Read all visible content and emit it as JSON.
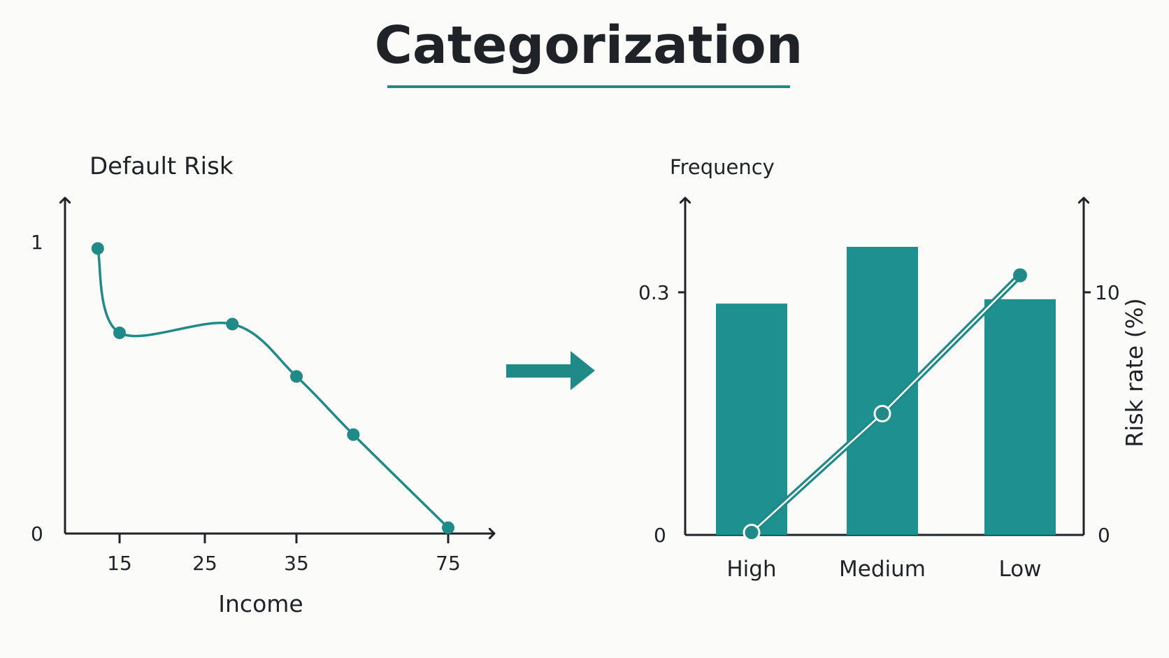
{
  "title": "Categorization",
  "colors": {
    "accent": "#1f8a87",
    "bar": "#1f9090",
    "axis": "#1f2328",
    "background": "#fbfbf9"
  },
  "arrow_icon": "right-arrow-icon",
  "chart_data": [
    {
      "type": "line",
      "title": "Default Risk",
      "xlabel": "Income",
      "ylabel": "",
      "x_ticks": [
        "15",
        "25",
        "35",
        "75"
      ],
      "y_ticks": [
        "0",
        "1"
      ],
      "ylim": [
        0,
        1
      ],
      "curve": "smooth",
      "series": [
        {
          "points": [
            {
              "x": 9,
              "y": 0.98
            },
            {
              "x": 15,
              "y": 0.69
            },
            {
              "x": 28,
              "y": 0.72
            },
            {
              "x": 35,
              "y": 0.54
            },
            {
              "x": 50,
              "y": 0.34
            },
            {
              "x": 75,
              "y": 0.02
            }
          ]
        }
      ]
    },
    {
      "type": "bar",
      "title": "Frequency",
      "ylabel": "",
      "y2label": "Risk rate (%)",
      "categories": [
        "High",
        "Medium",
        "Low"
      ],
      "y_ticks": [
        "0",
        "0.3"
      ],
      "y2_ticks": [
        "0",
        "10"
      ],
      "ylim": [
        0,
        0.33
      ],
      "y2lim": [
        0,
        10
      ],
      "series": [
        {
          "axis": "left",
          "type": "bar",
          "values": [
            0.265,
            0.33,
            0.27
          ]
        },
        {
          "axis": "right",
          "type": "line",
          "values": [
            0.1,
            5.0,
            10.7
          ]
        }
      ]
    }
  ]
}
